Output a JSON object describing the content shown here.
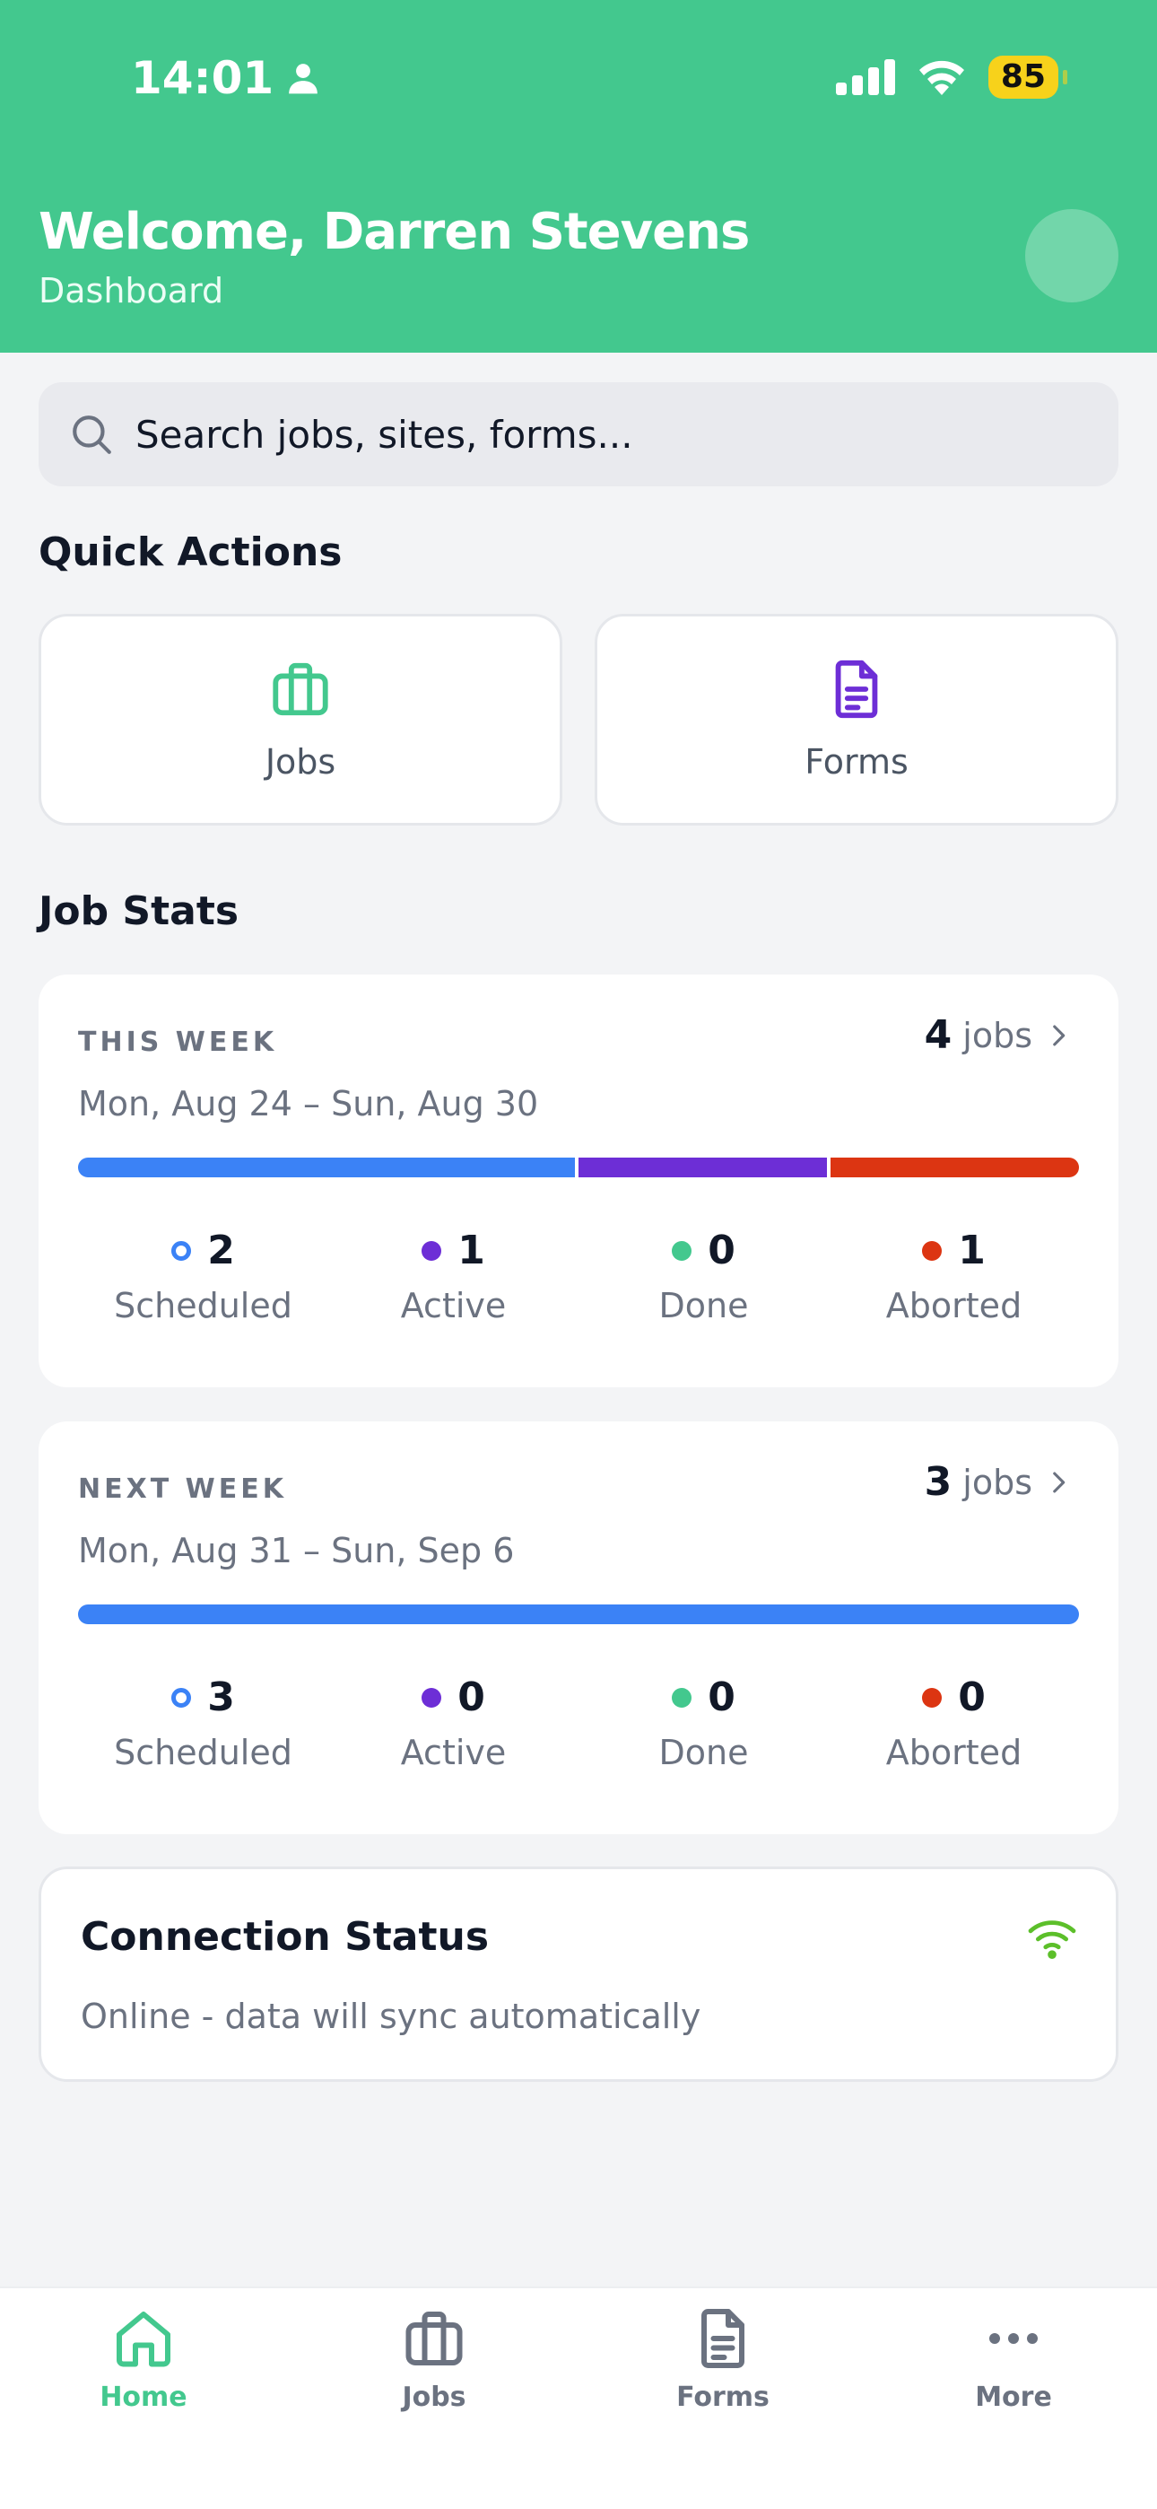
{
  "status_bar": {
    "time": "14:01",
    "battery": "85"
  },
  "header": {
    "title": "Welcome, Darren Stevens",
    "subtitle": "Dashboard"
  },
  "search": {
    "placeholder": "Search jobs, sites, forms..."
  },
  "quick_actions": {
    "title": "Quick Actions",
    "items": [
      {
        "label": "Jobs",
        "icon": "briefcase-icon"
      },
      {
        "label": "Forms",
        "icon": "document-icon"
      }
    ]
  },
  "job_stats": {
    "title": "Job Stats",
    "cards": [
      {
        "label": "THIS WEEK",
        "count": "4",
        "count_unit": "jobs",
        "dates": "Mon, Aug 24 – Sun, Aug 30",
        "stats": [
          {
            "value": "2",
            "label": "Scheduled"
          },
          {
            "value": "1",
            "label": "Active"
          },
          {
            "value": "0",
            "label": "Done"
          },
          {
            "value": "1",
            "label": "Aborted"
          }
        ]
      },
      {
        "label": "NEXT WEEK",
        "count": "3",
        "count_unit": "jobs",
        "dates": "Mon, Aug 31 – Sun, Sep 6",
        "stats": [
          {
            "value": "3",
            "label": "Scheduled"
          },
          {
            "value": "0",
            "label": "Active"
          },
          {
            "value": "0",
            "label": "Done"
          },
          {
            "value": "0",
            "label": "Aborted"
          }
        ]
      }
    ]
  },
  "connection": {
    "title": "Connection Status",
    "text": "Online - data will sync automatically"
  },
  "tabs": [
    {
      "label": "Home"
    },
    {
      "label": "Jobs"
    },
    {
      "label": "Forms"
    },
    {
      "label": "More"
    }
  ],
  "colors": {
    "brand": "#43c88e",
    "scheduled": "#3b82f6",
    "active": "#6d2ed6",
    "done": "#43c88e",
    "aborted": "#dc3512",
    "online": "#5cbf2a"
  }
}
